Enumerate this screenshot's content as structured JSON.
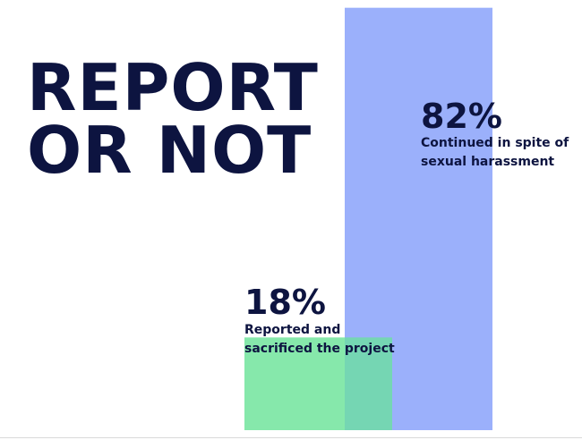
{
  "title": {
    "line1": "REPORT",
    "line2": "OR NOT"
  },
  "colors": {
    "text": "#0d1440",
    "continued_bar": "#9bb0fb",
    "reported_bar": "#86e8ab",
    "overlap": "#75d6b3"
  },
  "chart_data": {
    "type": "bar",
    "title": "REPORT OR NOT",
    "categories": [
      "Reported and sacrificed the project",
      "Continued in spite of sexual harassment"
    ],
    "values": [
      18,
      82
    ],
    "unit": "%",
    "ylim": [
      0,
      100
    ],
    "grid": false,
    "labels": [
      {
        "value": "18%",
        "line1": "Reported and",
        "line2": "sacrificed the project"
      },
      {
        "value": "82%",
        "line1": "Continued in spite of",
        "line2": "sexual harassment"
      }
    ]
  }
}
